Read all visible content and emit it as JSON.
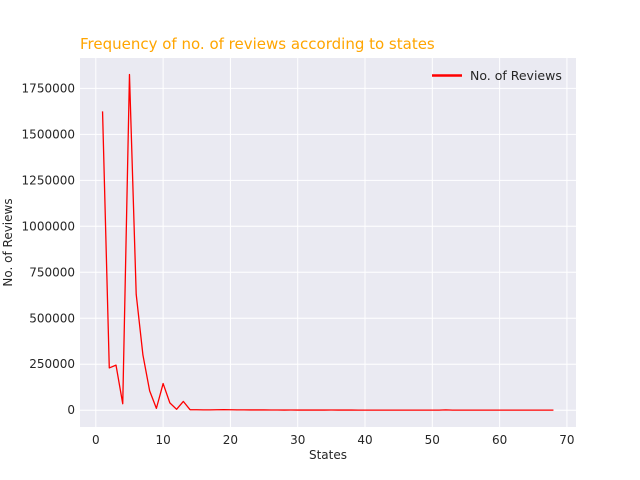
{
  "chart_data": {
    "type": "line",
    "title": "Frequency of no. of reviews according to states",
    "title_color": "#FFA500",
    "xlabel": "States",
    "ylabel": "No. of Reviews",
    "xlim": [
      -2.35,
      71.35
    ],
    "ylim": [
      -91200,
      1915000
    ],
    "x_ticks": [
      0,
      10,
      20,
      30,
      40,
      50,
      60,
      70
    ],
    "x_tick_labels": [
      "0",
      "10",
      "20",
      "30",
      "40",
      "50",
      "60",
      "70"
    ],
    "y_ticks": [
      0,
      250000,
      500000,
      750000,
      1000000,
      1250000,
      1500000,
      1750000
    ],
    "y_tick_labels": [
      "0",
      "250000",
      "500000",
      "750000",
      "1000000",
      "1250000",
      "1500000",
      "1750000"
    ],
    "grid": true,
    "background": "#EAEAF2",
    "legend_position": "top-right",
    "series": [
      {
        "name": "No. of Reviews",
        "color": "#FF0000",
        "x": [
          1,
          2,
          3,
          4,
          5,
          6,
          7,
          8,
          9,
          10,
          11,
          12,
          13,
          14,
          15,
          16,
          17,
          18,
          19,
          20,
          21,
          22,
          23,
          24,
          25,
          26,
          27,
          28,
          29,
          30,
          31,
          32,
          33,
          34,
          35,
          36,
          37,
          38,
          39,
          40,
          41,
          42,
          43,
          44,
          45,
          46,
          47,
          48,
          49,
          50,
          51,
          52,
          53,
          54,
          55,
          56,
          57,
          58,
          59,
          60,
          61,
          62,
          63,
          64,
          65,
          66,
          67,
          68
        ],
        "values": [
          1625000,
          230000,
          245000,
          35000,
          1825000,
          630000,
          300000,
          105000,
          10000,
          145000,
          40000,
          5000,
          48000,
          3000,
          2500,
          2000,
          2000,
          2500,
          3000,
          2500,
          2000,
          1800,
          1500,
          1500,
          1500,
          1200,
          1200,
          1000,
          1200,
          1000,
          1000,
          1000,
          800,
          900,
          1200,
          900,
          800,
          800,
          700,
          700,
          700,
          600,
          600,
          600,
          600,
          500,
          500,
          500,
          500,
          500,
          500,
          1800,
          600,
          500,
          500,
          500,
          500,
          500,
          500,
          500,
          500,
          500,
          500,
          500,
          500,
          500,
          500,
          500
        ]
      }
    ]
  }
}
